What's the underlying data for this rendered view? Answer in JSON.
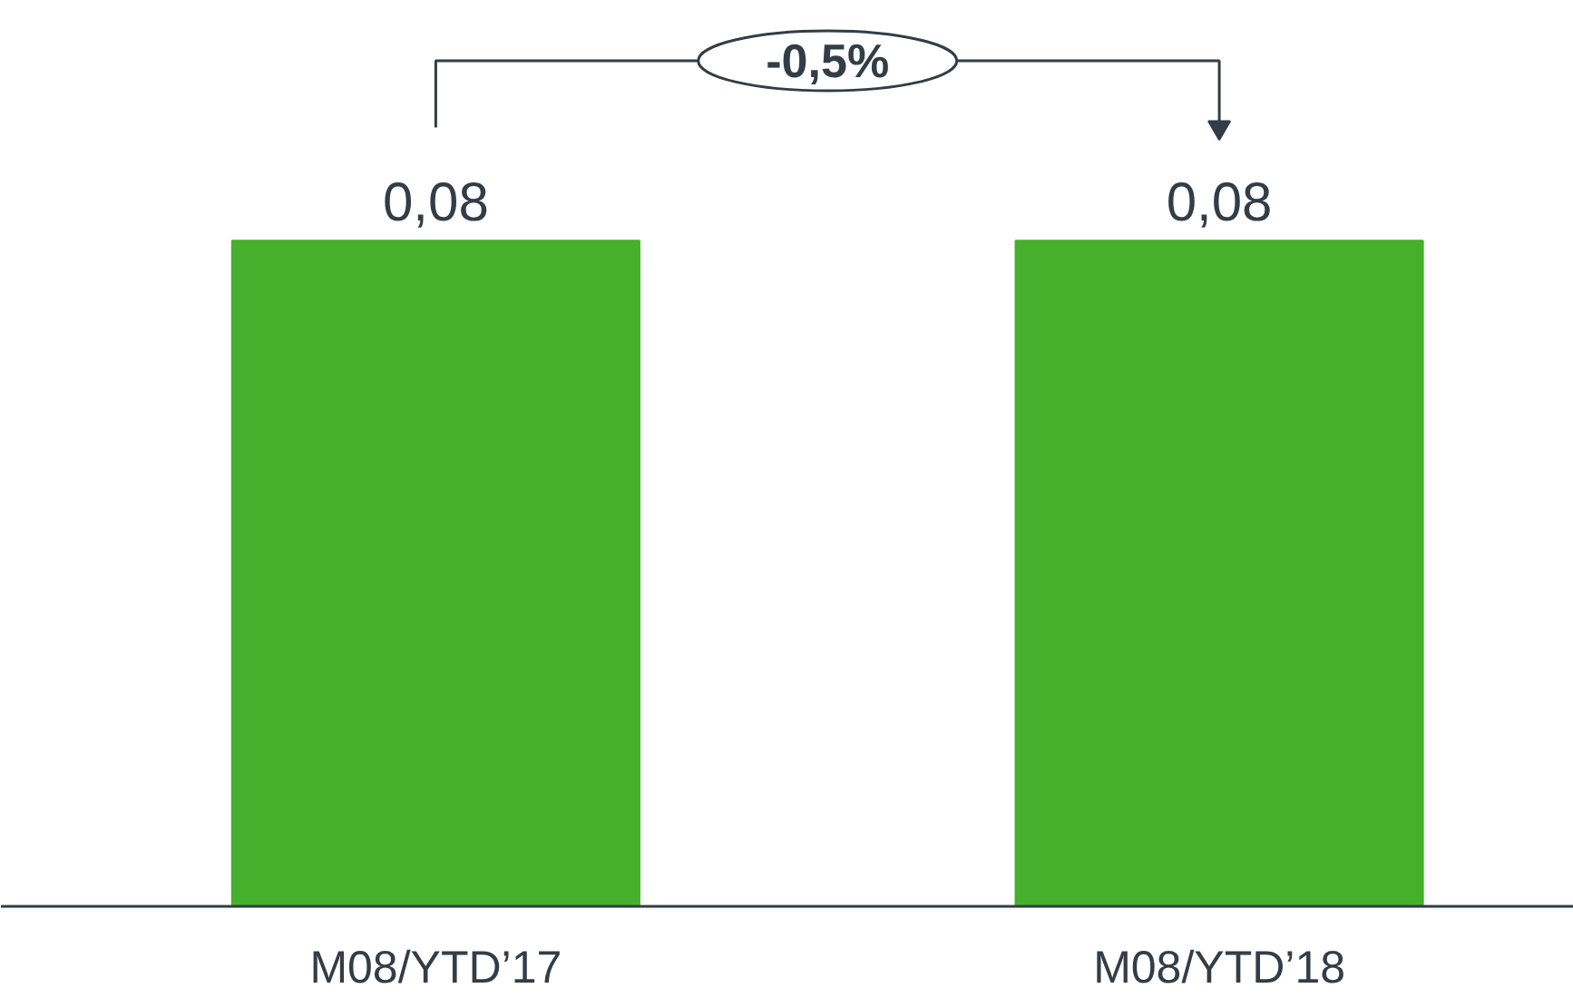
{
  "chart_data": {
    "type": "bar",
    "categories": [
      "M08/YTD’17",
      "M08/YTD’18"
    ],
    "values": [
      0.08,
      0.08
    ],
    "color": "#45b02b",
    "value_labels": [
      "0,08",
      "0,08"
    ],
    "annotations": [
      "-0,5%"
    ]
  }
}
